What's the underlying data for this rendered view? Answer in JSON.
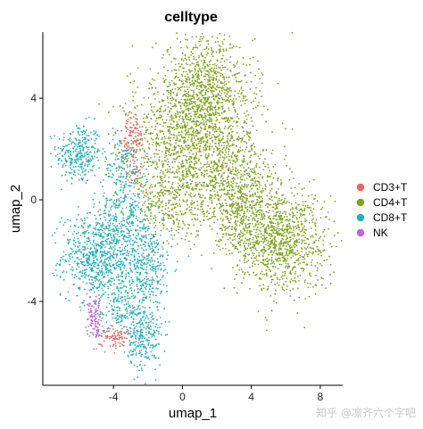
{
  "chart_data": {
    "type": "scatter",
    "title": "celltype",
    "xlabel": "umap_1",
    "ylabel": "umap_2",
    "xlim": [
      -8.1,
      9.3
    ],
    "ylim": [
      -7.3,
      6.6
    ],
    "xticks": [
      -4,
      0,
      4,
      8
    ],
    "yticks": [
      -4,
      0,
      4
    ],
    "grid": false,
    "legend_position": "right",
    "series": [
      {
        "name": "CD3+T",
        "color": "#E8685F",
        "clusters": [
          {
            "center": [
              -3.0,
              2.2
            ],
            "spread": [
              0.35,
              0.55
            ],
            "count": 90
          },
          {
            "center": [
              -2.6,
              2.9
            ],
            "spread": [
              0.25,
              0.4
            ],
            "count": 40
          },
          {
            "center": [
              -3.9,
              -5.4
            ],
            "spread": [
              0.45,
              0.22
            ],
            "count": 90
          },
          {
            "center": [
              -2.8,
              1.0
            ],
            "spread": [
              0.3,
              0.3
            ],
            "count": 25
          }
        ]
      },
      {
        "name": "CD4+T",
        "color": "#7CA51A",
        "clusters": [
          {
            "center": [
              1.3,
              4.4
            ],
            "spread": [
              1.4,
              1.0
            ],
            "count": 800
          },
          {
            "center": [
              0.5,
              2.4
            ],
            "spread": [
              1.8,
              1.1
            ],
            "count": 1000
          },
          {
            "center": [
              2.5,
              0.6
            ],
            "spread": [
              1.6,
              1.0
            ],
            "count": 700
          },
          {
            "center": [
              -1.0,
              0.0
            ],
            "spread": [
              0.9,
              1.0
            ],
            "count": 300
          },
          {
            "center": [
              5.8,
              -1.6
            ],
            "spread": [
              1.3,
              1.0
            ],
            "count": 900
          },
          {
            "center": [
              3.9,
              -0.9
            ],
            "spread": [
              1.0,
              1.0
            ],
            "count": 350
          }
        ]
      },
      {
        "name": "CD8+T",
        "color": "#21B3B8",
        "clusters": [
          {
            "center": [
              -6.0,
              1.8
            ],
            "spread": [
              0.65,
              0.6
            ],
            "count": 300
          },
          {
            "center": [
              -5.0,
              -2.2
            ],
            "spread": [
              1.0,
              0.8
            ],
            "count": 650
          },
          {
            "center": [
              -2.2,
              -2.6
            ],
            "spread": [
              0.8,
              0.9
            ],
            "count": 380
          },
          {
            "center": [
              -3.4,
              -0.6
            ],
            "spread": [
              0.8,
              1.0
            ],
            "count": 300
          },
          {
            "center": [
              -3.5,
              -4.2
            ],
            "spread": [
              0.8,
              0.6
            ],
            "count": 200
          },
          {
            "center": [
              -2.2,
              -5.5
            ],
            "spread": [
              0.5,
              0.6
            ],
            "count": 220
          },
          {
            "center": [
              -3.5,
              1.3
            ],
            "spread": [
              0.6,
              0.6
            ],
            "count": 120
          }
        ]
      },
      {
        "name": "NK",
        "color": "#C163E8",
        "clusters": [
          {
            "center": [
              -5.1,
              -4.7
            ],
            "spread": [
              0.22,
              0.45
            ],
            "count": 110
          }
        ]
      }
    ]
  },
  "watermark": "知乎 @凛齐六个字吧"
}
